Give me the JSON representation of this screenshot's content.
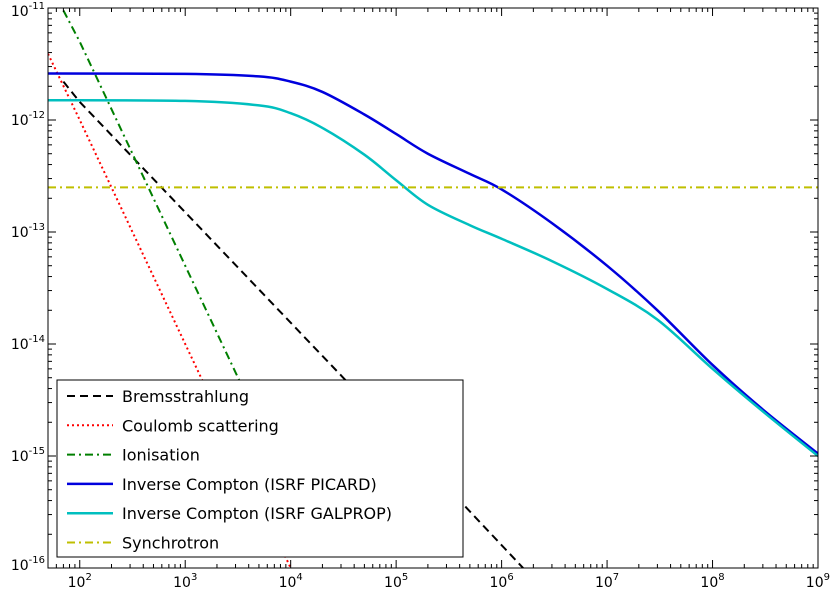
{
  "chart_data": {
    "type": "line",
    "title": "",
    "xlabel": "",
    "ylabel": "",
    "x_scale": "log",
    "y_scale": "log",
    "xlim": [
      50,
      1000000000
    ],
    "ylim": [
      1e-16,
      1e-11
    ],
    "grid": false,
    "legend_position": "lower-left",
    "x_ticks": [
      {
        "value": 100,
        "base": "10",
        "exp": "2"
      },
      {
        "value": 1000,
        "base": "10",
        "exp": "3"
      },
      {
        "value": 10000,
        "base": "10",
        "exp": "4"
      },
      {
        "value": 100000,
        "base": "10",
        "exp": "5"
      },
      {
        "value": 1000000,
        "base": "10",
        "exp": "6"
      },
      {
        "value": 10000000,
        "base": "10",
        "exp": "7"
      },
      {
        "value": 100000000,
        "base": "10",
        "exp": "8"
      },
      {
        "value": 1000000000,
        "base": "10",
        "exp": "9"
      }
    ],
    "y_ticks": [
      {
        "value": 1e-11,
        "base": "10",
        "exp": "-11"
      },
      {
        "value": 1e-12,
        "base": "10",
        "exp": "-12"
      },
      {
        "value": 1e-13,
        "base": "10",
        "exp": "-13"
      },
      {
        "value": 1e-14,
        "base": "10",
        "exp": "-14"
      },
      {
        "value": 1e-15,
        "base": "10",
        "exp": "-15"
      },
      {
        "value": 1e-16,
        "base": "10",
        "exp": "-16"
      }
    ],
    "series": [
      {
        "name": "Bremsstrahlung",
        "color": "#000000",
        "style": "dashed",
        "x": [
          70,
          100,
          1000,
          10000,
          100000,
          1000000,
          1600000
        ],
        "y": [
          2.2e-12,
          1.45e-12,
          1.5e-13,
          1.55e-14,
          1.6e-15,
          1.6e-16,
          1e-16
        ]
      },
      {
        "name": "Coulomb scattering",
        "color": "#ff0000",
        "style": "dotted",
        "x": [
          50,
          100,
          1000,
          10000
        ],
        "y": [
          3.9e-12,
          1e-12,
          1e-14,
          1e-16
        ]
      },
      {
        "name": "Ionisation",
        "color": "#007f00",
        "style": "dashdot",
        "x": [
          70,
          100,
          1000,
          3500
        ],
        "y": [
          9.5e-12,
          5e-12,
          5e-14,
          4.1e-15
        ]
      },
      {
        "name": "Inverse Compton (ISRF PICARD)",
        "color": "#0000dd",
        "style": "solid",
        "x": [
          50,
          1000,
          5000,
          10000,
          20000,
          50000,
          100000,
          200000,
          500000,
          1000000,
          3000000,
          10000000,
          30000000,
          100000000,
          300000000,
          1000000000
        ],
        "y": [
          2.6e-12,
          2.58e-12,
          2.45e-12,
          2.2e-12,
          1.78e-12,
          1.12e-12,
          7.5e-13,
          5e-13,
          3.3e-13,
          2.4e-13,
          1.2e-13,
          5e-14,
          2e-14,
          6.5e-15,
          2.6e-15,
          1.05e-15
        ]
      },
      {
        "name": "Inverse Compton (ISRF GALPROP)",
        "color": "#00bfbf",
        "style": "solid",
        "x": [
          50,
          1000,
          5000,
          10000,
          20000,
          50000,
          100000,
          200000,
          500000,
          1000000,
          3000000,
          10000000,
          30000000,
          100000000,
          300000000,
          1000000000
        ],
        "y": [
          1.5e-12,
          1.48e-12,
          1.35e-12,
          1.15e-12,
          8.5e-13,
          4.9e-13,
          2.9e-13,
          1.75e-13,
          1.15e-13,
          8.7e-14,
          5.5e-14,
          3.1e-14,
          1.65e-14,
          6e-15,
          2.5e-15,
          1e-15
        ]
      },
      {
        "name": "Synchrotron",
        "color": "#bfbf00",
        "style": "dashdot",
        "x": [
          50,
          1000000000
        ],
        "y": [
          2.5e-13,
          2.5e-13
        ]
      }
    ]
  }
}
